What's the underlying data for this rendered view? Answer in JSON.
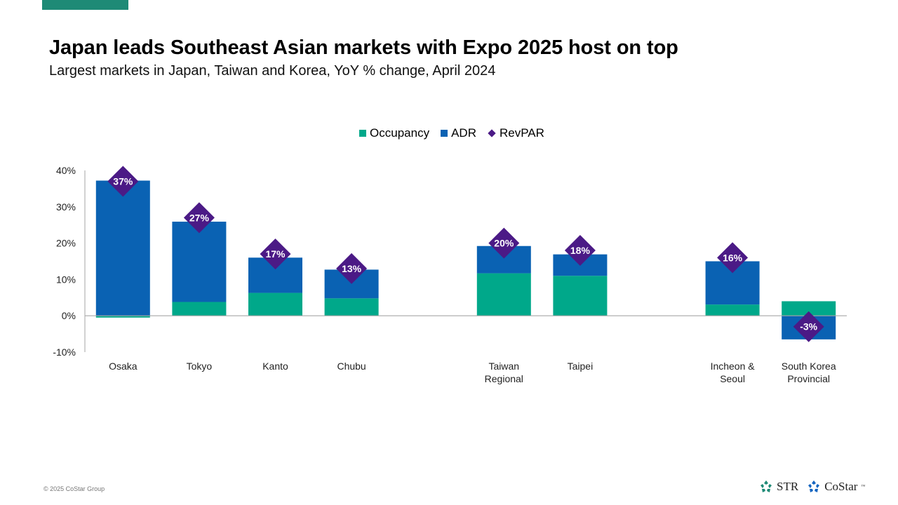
{
  "header": {
    "title": "Japan leads Southeast Asian markets with Expo 2025 host on top",
    "subtitle": "Largest markets in Japan, Taiwan and Korea, YoY % change, April 2024"
  },
  "legend": [
    {
      "label": "Occupancy",
      "shape": "square",
      "color": "#00a88a"
    },
    {
      "label": "ADR",
      "shape": "square",
      "color": "#0a62b3"
    },
    {
      "label": "RevPAR",
      "shape": "diamond",
      "color": "#4b1a86"
    }
  ],
  "chart_data": {
    "type": "bar",
    "stacked": true,
    "title": "Japan leads Southeast Asian markets with Expo 2025 host on top",
    "subtitle": "Largest markets in Japan, Taiwan and Korea, YoY % change, April 2024",
    "xlabel": "",
    "ylabel": "",
    "ylim": [
      -10,
      40
    ],
    "yticks": [
      "-10%",
      "0%",
      "10%",
      "20%",
      "30%",
      "40%"
    ],
    "ytick_values": [
      -10,
      0,
      10,
      20,
      30,
      40
    ],
    "grid": false,
    "legend_position": "top-center",
    "categories": [
      "Osaka",
      "Tokyo",
      "Kanto",
      "Chubu",
      "",
      "Taiwan Regional",
      "Taipei",
      "",
      "Incheon & Seoul",
      "South Korea Provincial"
    ],
    "category_lines": [
      [
        "Osaka"
      ],
      [
        "Tokyo"
      ],
      [
        "Kanto"
      ],
      [
        "Chubu"
      ],
      [],
      [
        "Taiwan",
        "Regional"
      ],
      [
        "Taipei"
      ],
      [],
      [
        "Incheon &",
        "Seoul"
      ],
      [
        "South Korea",
        "Provincial"
      ]
    ],
    "series": [
      {
        "name": "Occupancy",
        "type": "bar",
        "color": "#00a88a",
        "values": [
          -0.5,
          3.8,
          6.3,
          4.8,
          null,
          11.7,
          11.0,
          null,
          3.1,
          4.0
        ]
      },
      {
        "name": "ADR",
        "type": "bar",
        "color": "#0a62b3",
        "values": [
          37.2,
          22.1,
          9.7,
          7.9,
          null,
          7.5,
          5.9,
          null,
          11.9,
          -6.5
        ]
      },
      {
        "name": "RevPAR",
        "type": "marker",
        "marker": "diamond",
        "color": "#4b1a86",
        "values": [
          37,
          27,
          17,
          13,
          null,
          20,
          18,
          null,
          16,
          -3
        ],
        "labels": [
          "37%",
          "27%",
          "17%",
          "13%",
          "",
          "20%",
          "18%",
          "",
          "16%",
          "-3%"
        ]
      }
    ]
  },
  "footer": {
    "copyright": "© 2025 CoStar Group",
    "logos": [
      {
        "name": "STR",
        "color": "#1e8a76"
      },
      {
        "name": "CoStar",
        "color": "#1565c0",
        "mark": "™"
      }
    ]
  }
}
